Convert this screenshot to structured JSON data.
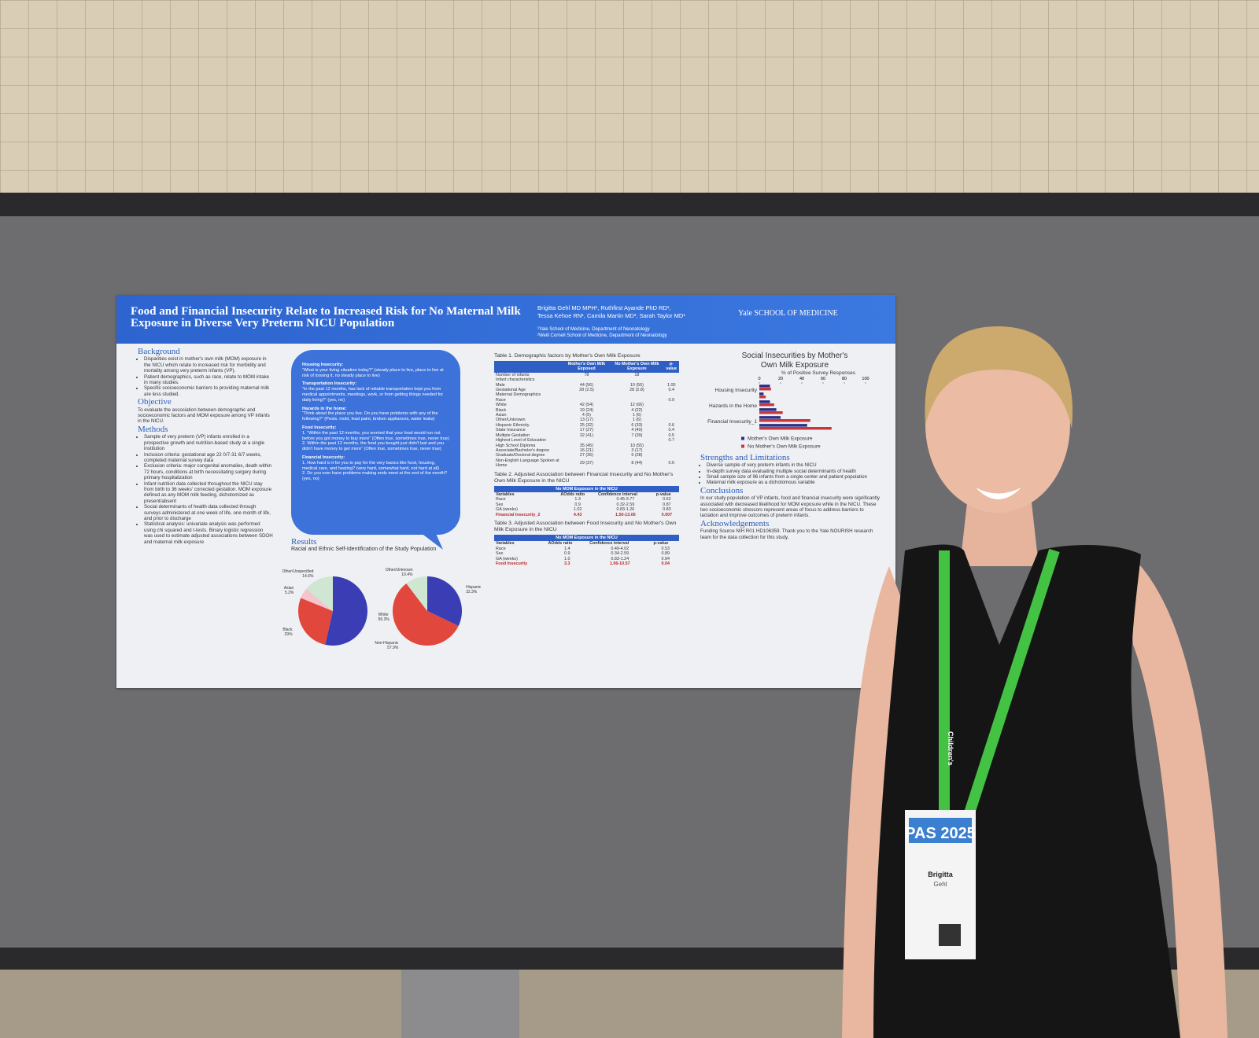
{
  "poster": {
    "title": "Food and Financial Insecurity Relate to Increased Risk for No Maternal Milk Exposure in Diverse Very Preterm NICU Population",
    "authors": [
      "Brigitta Gehl MD MPH¹, Ruthfirst Ayande PhD RD¹,",
      "Tessa Kehoe RN¹, Camila Martin MD², Sarah Taylor MD¹"
    ],
    "affiliations": [
      "¹Yale School of Medicine, Department of Neonatology",
      "²Weill Cornell School of Medicine, Department of Neonatology"
    ],
    "logo": "Yale SCHOOL OF MEDICINE",
    "background": {
      "heading": "Background",
      "bullets": [
        "Disparities exist in mother's own milk (MOM) exposure in the NICU which relate to increased risk for morbidity and mortality among very preterm infants (VP).",
        "Patient demographics, such as race, relate to MOM intake in many studies.",
        "Specific socioeconomic barriers to providing maternal milk are less studied."
      ]
    },
    "objective": {
      "heading": "Objective",
      "text": "To evaluate the association between demographic and socioeconomic factors and MOM exposure among VP infants in the NICU."
    },
    "methods": {
      "heading": "Methods",
      "bullets": [
        "Sample of very preterm (VP) infants enrolled in a prospective growth and nutrition-based study at a single institution",
        "Inclusion criteria: gestational age 22 0/7-31 6/7 weeks, completed maternal survey data",
        "Exclusion criteria: major congenital anomalies, death within 72 hours, conditions at birth necessitating surgery during primary hospitalization",
        "Infant nutrition data collected throughout the NICU stay from birth to 36 weeks' corrected gestation. MOM exposure defined as any MOM milk feeding, dichotomized as present/absent",
        "Social determinants of health data collected through surveys administered at one week of life, one month of life, and prior to discharge",
        "Statistical analysis: univariate analysis was performed using chi squared and t-tests. Binary logistic regression was used to estimate adjusted associations between SDOH and maternal milk exposure"
      ]
    },
    "survey": [
      {
        "heading": "Housing Insecurity:",
        "lines": [
          "“What is your living situation today?” (steady place to live, place to live at risk of loosing it, no steady place to live)"
        ]
      },
      {
        "heading": "Transportation Insecurity:",
        "lines": [
          "“In the past 12 months, has lack of reliable transportation kept you from medical appointments, meetings, work, or from getting things needed for daily living?” (yes, no)"
        ]
      },
      {
        "heading": "Hazards in the home:",
        "lines": [
          "“Think about the place you live. Do you have problems with any of the following?” (Pests, mold, lead paint, broken appliances, water leaks)"
        ]
      },
      {
        "heading": "Food Insecurity:",
        "lines": [
          "1. “Within the past 12 months, you worried that your food would run out before you got money to buy more” (Often true, sometimes true, never true)",
          "2. Within the past 12 months, the food you bought just didn't last and you didn't have money to get more” (Often true, sometimes true, never true)"
        ]
      },
      {
        "heading": "Financial Insecurity:",
        "lines": [
          "1. How hard is it for you to pay for the very basics like food, housing, medical care, and heating? (very hard, somewhat hard, not hard at all)",
          "2. Do you ever have problems making ends meet at the end of the month? (yes, no)"
        ]
      }
    ],
    "results": {
      "heading": "Results",
      "chart_title": "Racial and Ethnic Self-Identification of the Study Population"
    },
    "pies": [
      {
        "labels": [
          "White",
          "Black",
          "Asian",
          "Other/Unspecified"
        ],
        "values": [
          56.3,
          29,
          5.2,
          14.6
        ],
        "value_labels": [
          "56.3%",
          "29%",
          "5.2%",
          "14.6%"
        ],
        "colors": [
          "#3a3db4",
          "#e2473e",
          "#f3c6cb",
          "#cfe6d3"
        ]
      },
      {
        "labels": [
          "Hispanic",
          "Non-Hispanic",
          "Other/Unknown"
        ],
        "values": [
          32.3,
          57.9,
          10.4
        ],
        "value_labels": [
          "32.3%",
          "57.9%",
          "10.4%"
        ],
        "colors": [
          "#3a3db4",
          "#e2473e",
          "#cfe6d3"
        ]
      }
    ],
    "table1": {
      "title": "Table 1. Demographic factors by Mother's Own Milk Exposure",
      "columns": [
        null,
        "Mother's Own Milk Exposed",
        "No Mother's Own Milk Exposure",
        "p-value"
      ],
      "rows": [
        [
          "Number of infants",
          "78",
          "18",
          null
        ],
        [
          "Infant characteristics",
          null,
          null,
          null
        ],
        [
          "Male",
          "44 (56)",
          "10 (55)",
          "1.00"
        ],
        [
          "Gestational Age",
          "28 (2.5)",
          "28 (2.8)",
          "0.4"
        ],
        [
          "Maternal Demographics",
          null,
          null,
          null
        ],
        [
          "Race",
          null,
          null,
          "0.9"
        ],
        [
          "White",
          "42 (54)",
          "12 (66)",
          null
        ],
        [
          "Black",
          "19 (24)",
          "4 (22)",
          null
        ],
        [
          "Asian",
          "4 (5)",
          "1 (6)",
          null
        ],
        [
          "Other/Unknown",
          "13 (17)",
          "1 (6)",
          null
        ],
        [
          "Hispanic Ethnicity",
          "25 (32)",
          "6 (33)",
          "0.6"
        ],
        [
          "State Insurance",
          "17 (27)",
          "4 (40)",
          "0.4"
        ],
        [
          "Multiple Gestation",
          "32 (41)",
          "7 (39)",
          "0.5"
        ],
        [
          "Highest Level of Education",
          null,
          null,
          "0.7"
        ],
        [
          "High School Diploma",
          "35 (45)",
          "10 (55)",
          null
        ],
        [
          "Associate/Bachelor's degree",
          "16 (21)",
          "3 (17)",
          null
        ],
        [
          "Graduate/Doctoral degree",
          "27 (35)",
          "5 (28)",
          null
        ],
        [
          "Non-English Language Spoken at Home",
          "29 (37)",
          "8 (44)",
          "0.6"
        ]
      ]
    },
    "table2": {
      "title": "Table 2. Adjusted Association between Financial Insecurity and No Mother's Own Milk Exposure in the NICU",
      "band": "No MOM Exposure in the NICU",
      "columns": [
        "Variables",
        "AOdds ratio",
        "Confidence interval",
        "p-value"
      ],
      "rows": [
        [
          "Race",
          "1.3",
          "0.45-3.77",
          "0.62"
        ],
        [
          "Sex",
          "0.9",
          "0.32-2.59",
          "0.87"
        ],
        [
          "GA (weeks)",
          "1.02",
          "0.83-1.26",
          "0.83"
        ],
        [
          "Financial Insecurity_2",
          "4.43",
          "1.50-13.06",
          "0.007"
        ]
      ]
    },
    "table3": {
      "title": "Table 3. Adjusted Association between Food Insecurity and No Mother's Own Milk Exposure in the NICU",
      "band": "No MOM Exposure in the NICU",
      "columns": [
        "Variables",
        "AOdds ratio",
        "Confidence interval",
        "p-value"
      ],
      "rows": [
        [
          "Race",
          "1.4",
          "0.49-4.02",
          "0.53"
        ],
        [
          "Sex",
          "0.9",
          "0.34-2.59",
          "0.89"
        ],
        [
          "GA (weeks)",
          "1.0",
          "0.83-1.24",
          "0.94"
        ],
        [
          "Food Insecurity",
          "3.3",
          "1.06-10.57",
          "0.04"
        ]
      ]
    },
    "bar_chart": {
      "type": "bar",
      "title": "Social Insecurities by Mother's Own Milk Exposure",
      "x_label": "% of Positive Survey Responses",
      "categories": [
        "Housing Insecurity",
        null,
        "Hazards in the Home",
        null,
        "Financial Insecurity_1",
        null
      ],
      "xlim": [
        0,
        100
      ],
      "xticks": [
        0,
        20,
        40,
        60,
        80,
        100
      ],
      "series": [
        {
          "name": "Mother's Own Milk Exposure",
          "color": "#2b2d86",
          "values": [
            10,
            4,
            10,
            16,
            20,
            45
          ]
        },
        {
          "name": "No Mother's Own Milk Exposure",
          "color": "#c8383a",
          "values": [
            11,
            6,
            14,
            22,
            48,
            68
          ]
        }
      ]
    },
    "strengths": {
      "heading": "Strengths and Limitations",
      "bullets": [
        "Diverse sample of very preterm infants in the NICU",
        "In-depth survey data evaluating multiple social determinants of health",
        "Small sample size of 96 infants from a single center and patient population",
        "Maternal milk exposure as a dichotomous variable"
      ]
    },
    "conclusions": {
      "heading": "Conclusions",
      "text": "In our study population of VP infants, food and financial insecurity were significantly associated with decreased likelihood for MOM exposure while in the NICU. These two socioeconomic stressors represent areas of focus to address barriers to lactation and improve outcomes of preterm infants."
    },
    "acknowledgements": {
      "heading": "Acknowledgements",
      "text": "Funding Source NIH R01 HD106359. Thank you to the Yale NOURISH research team for the data collection for this study."
    }
  },
  "badge": {
    "event": "PAS 2025",
    "first_name": "Brigitta",
    "last_name": "Gehl",
    "lanyard": "Children's"
  }
}
